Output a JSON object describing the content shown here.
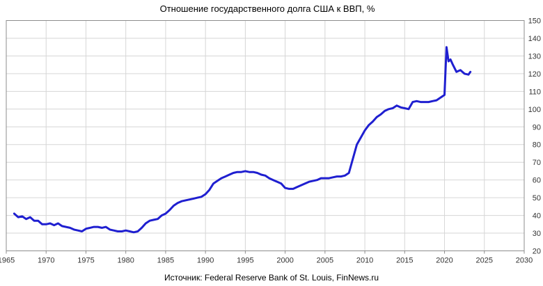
{
  "chart_data": {
    "type": "line",
    "title": "Отношение государственного долга США к ВВП, %",
    "source": "Источник: Federal Reserve Bank of St. Louis, FinNews.ru",
    "xlim": [
      1965,
      2030
    ],
    "ylim": [
      20,
      150
    ],
    "x_ticks": [
      "1965",
      "1970",
      "1975",
      "1980",
      "1985",
      "1990",
      "1995",
      "2000",
      "2005",
      "2010",
      "2015",
      "2020",
      "2025",
      "2030"
    ],
    "y_ticks": [
      "20",
      "30",
      "40",
      "50",
      "60",
      "70",
      "80",
      "90",
      "100",
      "110",
      "120",
      "130",
      "140",
      "150"
    ],
    "grid": true,
    "y_axis_side": "right",
    "colors": {
      "series": "#1f1fd0",
      "grid": "#d6d6d6",
      "frame": "#8c8c8c"
    },
    "series": [
      {
        "color": "#1f1fd0",
        "x": [
          1966.0,
          1966.5,
          1967.0,
          1967.5,
          1968.0,
          1968.5,
          1969.0,
          1969.5,
          1970.0,
          1970.5,
          1971.0,
          1971.5,
          1972.0,
          1972.5,
          1973.0,
          1973.5,
          1974.0,
          1974.5,
          1975.0,
          1975.5,
          1976.0,
          1976.5,
          1977.0,
          1977.5,
          1978.0,
          1978.5,
          1979.0,
          1979.5,
          1980.0,
          1980.5,
          1981.0,
          1981.5,
          1982.0,
          1982.5,
          1983.0,
          1983.5,
          1984.0,
          1984.5,
          1985.0,
          1985.5,
          1986.0,
          1986.5,
          1987.0,
          1987.5,
          1988.0,
          1988.5,
          1989.0,
          1989.5,
          1990.0,
          1990.5,
          1991.0,
          1991.5,
          1992.0,
          1992.5,
          1993.0,
          1993.5,
          1994.0,
          1994.5,
          1995.0,
          1995.5,
          1996.0,
          1996.5,
          1997.0,
          1997.5,
          1998.0,
          1998.5,
          1999.0,
          1999.5,
          2000.0,
          2000.5,
          2001.0,
          2001.5,
          2002.0,
          2002.5,
          2003.0,
          2003.5,
          2004.0,
          2004.5,
          2005.0,
          2005.5,
          2006.0,
          2006.5,
          2007.0,
          2007.5,
          2008.0,
          2008.5,
          2009.0,
          2009.5,
          2010.0,
          2010.5,
          2011.0,
          2011.5,
          2012.0,
          2012.5,
          2013.0,
          2013.5,
          2014.0,
          2014.5,
          2015.0,
          2015.5,
          2016.0,
          2016.5,
          2017.0,
          2017.5,
          2018.0,
          2018.5,
          2019.0,
          2019.5,
          2020.0,
          2020.25,
          2020.5,
          2020.75,
          2021.0,
          2021.5,
          2022.0,
          2022.5,
          2023.0,
          2023.25
        ],
        "y": [
          41,
          39,
          39.5,
          38,
          39,
          37,
          37,
          35,
          35,
          35.5,
          34.5,
          35.5,
          34,
          33.5,
          33,
          32,
          31.5,
          31,
          32.5,
          33,
          33.5,
          33.5,
          33,
          33.5,
          32,
          31.5,
          31,
          31,
          31.5,
          31,
          30.5,
          31,
          33,
          35.5,
          37,
          37.5,
          38,
          40,
          41,
          43,
          45.5,
          47,
          48,
          48.5,
          49,
          49.5,
          50,
          50.5,
          52,
          54.5,
          58,
          59.5,
          61,
          62,
          63,
          64,
          64.5,
          64.5,
          65,
          64.5,
          64.5,
          64,
          63,
          62.5,
          61,
          60,
          59,
          58,
          55.5,
          55,
          55,
          56,
          57,
          58,
          59,
          59.5,
          60,
          61,
          61,
          61,
          61.5,
          62,
          62,
          62.5,
          64,
          72,
          80,
          84,
          88,
          91,
          93,
          95.5,
          97,
          99,
          100,
          100.5,
          102,
          101,
          100.5,
          100,
          104,
          104.5,
          104,
          104,
          104,
          104.5,
          105,
          106.5,
          108,
          135,
          127,
          128,
          125.5,
          121,
          122,
          120,
          119.5,
          121
        ]
      }
    ]
  }
}
